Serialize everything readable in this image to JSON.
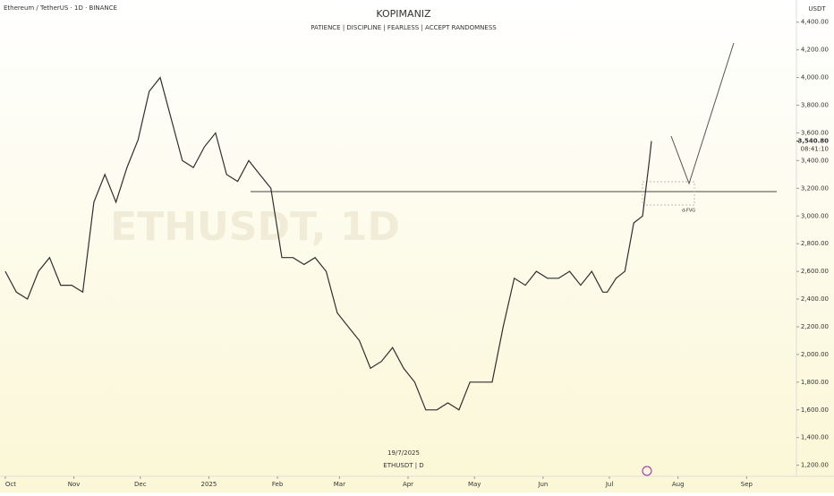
{
  "chart_data": {
    "type": "line",
    "symbol": "Ethereum / TetherUS · 1D · BINANCE",
    "title": "KOPIMANIZ",
    "subtitle": "PATIENCE  |  DISCIPLINE  |  FEARLESS | ACCEPT RANDOMNESS",
    "watermark": "ETHUSDT, 1D",
    "currency": "USDT",
    "date_label": "19/7/2025",
    "ticker_label": "ETHUSDT | D",
    "annotation": "d-FVG",
    "countdown": "08:41:10",
    "last_price": {
      "value": 3540.8,
      "label": "3,540.80"
    },
    "color": "#2f2f2f",
    "x": [
      0,
      5,
      10,
      15,
      20,
      25,
      30,
      35,
      40,
      45,
      50,
      55,
      60,
      65,
      70,
      75,
      80,
      85,
      90,
      95,
      100,
      105,
      110,
      115,
      120,
      125,
      130,
      135,
      140,
      145,
      150,
      155,
      160,
      165,
      170,
      175,
      180,
      185,
      190,
      195,
      200,
      205,
      210,
      215,
      220,
      225,
      230,
      235,
      240,
      245,
      250,
      255,
      260,
      265,
      270,
      272,
      276,
      280,
      284,
      288,
      291,
      292
    ],
    "values": [
      2600,
      2450,
      2400,
      2600,
      2700,
      2500,
      2500,
      2450,
      3100,
      3300,
      3100,
      3350,
      3550,
      3900,
      4000,
      3700,
      3400,
      3350,
      3500,
      3600,
      3300,
      3250,
      3400,
      3300,
      3200,
      2700,
      2700,
      2650,
      2700,
      2600,
      2300,
      2200,
      2100,
      1900,
      1950,
      2050,
      1900,
      1800,
      1600,
      1600,
      1650,
      1600,
      1800,
      1800,
      1800,
      2200,
      2550,
      2500,
      2600,
      2550,
      2550,
      2600,
      2500,
      2600,
      2450,
      2450,
      2550,
      2600,
      2950,
      3000,
      3400,
      3540.8
    ],
    "xlim": [
      -2.4,
      357.5
    ],
    "xticks": [
      {
        "value": 0,
        "label": "Oct"
      },
      {
        "value": 31,
        "label": "Nov"
      },
      {
        "value": 61,
        "label": "Dec"
      },
      {
        "value": 92,
        "label": "2025"
      },
      {
        "value": 123,
        "label": "Feb"
      },
      {
        "value": 151,
        "label": "Mar"
      },
      {
        "value": 182,
        "label": "Apr"
      },
      {
        "value": 212,
        "label": "May"
      },
      {
        "value": 243,
        "label": "Jun"
      },
      {
        "value": 273,
        "label": "Jul"
      },
      {
        "value": 304,
        "label": "Aug"
      },
      {
        "value": 335,
        "label": "Sep"
      }
    ],
    "ylim": [
      1120,
      4560
    ],
    "yticks": [
      {
        "value": 1200,
        "label": "1,200.00"
      },
      {
        "value": 1400,
        "label": "1,400.00"
      },
      {
        "value": 1600,
        "label": "1,600.00"
      },
      {
        "value": 1800,
        "label": "1,800.00"
      },
      {
        "value": 2000,
        "label": "2,000.00"
      },
      {
        "value": 2200,
        "label": "2,200.00"
      },
      {
        "value": 2400,
        "label": "2,400.00"
      },
      {
        "value": 2600,
        "label": "2,600.00"
      },
      {
        "value": 2800,
        "label": "2,800.00"
      },
      {
        "value": 3000,
        "label": "3,000.00"
      },
      {
        "value": 3200,
        "label": "3,200.00"
      },
      {
        "value": 3400,
        "label": "3,400.00"
      },
      {
        "value": 3600,
        "label": "3,600.00"
      },
      {
        "value": 3800,
        "label": "3,800.00"
      },
      {
        "value": 4000,
        "label": "4,000.00"
      },
      {
        "value": 4200,
        "label": "4,200.00"
      },
      {
        "value": 4400,
        "label": "4,400.00"
      }
    ]
  }
}
